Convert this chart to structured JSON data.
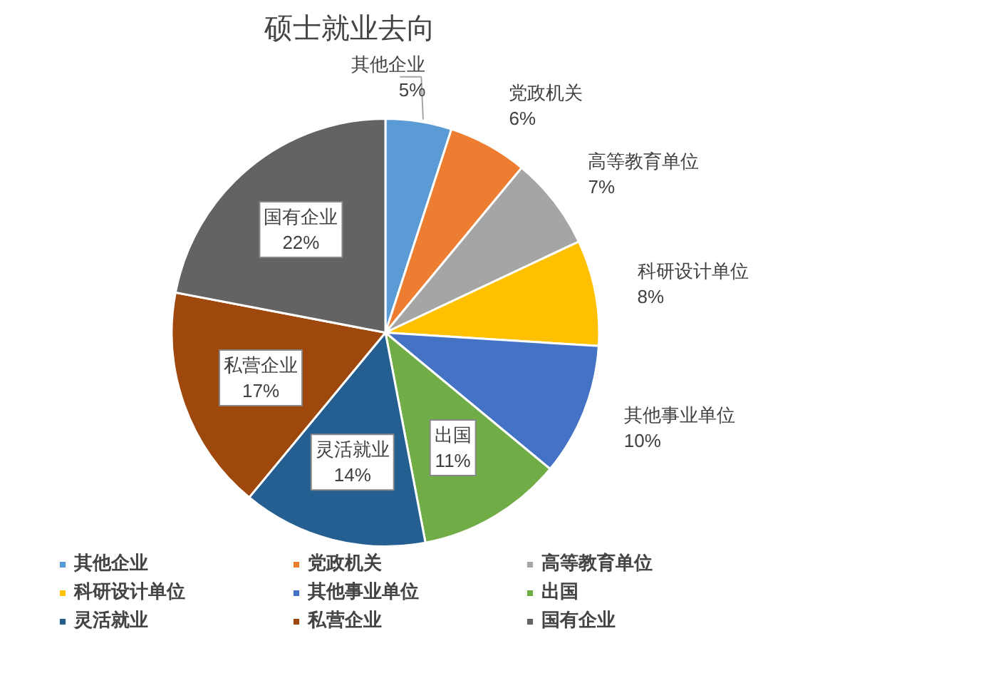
{
  "chart_data": {
    "type": "pie",
    "title": "硕士就业去向",
    "categories": [
      "其他企业",
      "党政机关",
      "高等教育单位",
      "科研设计单位",
      "其他事业单位",
      "出国",
      "灵活就业",
      "私营企业",
      "国有企业"
    ],
    "values": [
      5,
      6,
      7,
      8,
      10,
      11,
      14,
      17,
      22
    ],
    "value_labels": [
      "5%",
      "6%",
      "7%",
      "8%",
      "10%",
      "11%",
      "14%",
      "17%",
      "22%"
    ],
    "colors": [
      "#5b9bd5",
      "#ed7d31",
      "#a5a5a5",
      "#ffc000",
      "#4472c4",
      "#70ad47",
      "#255e91",
      "#9e480e",
      "#636363"
    ],
    "legend": "bottom"
  }
}
